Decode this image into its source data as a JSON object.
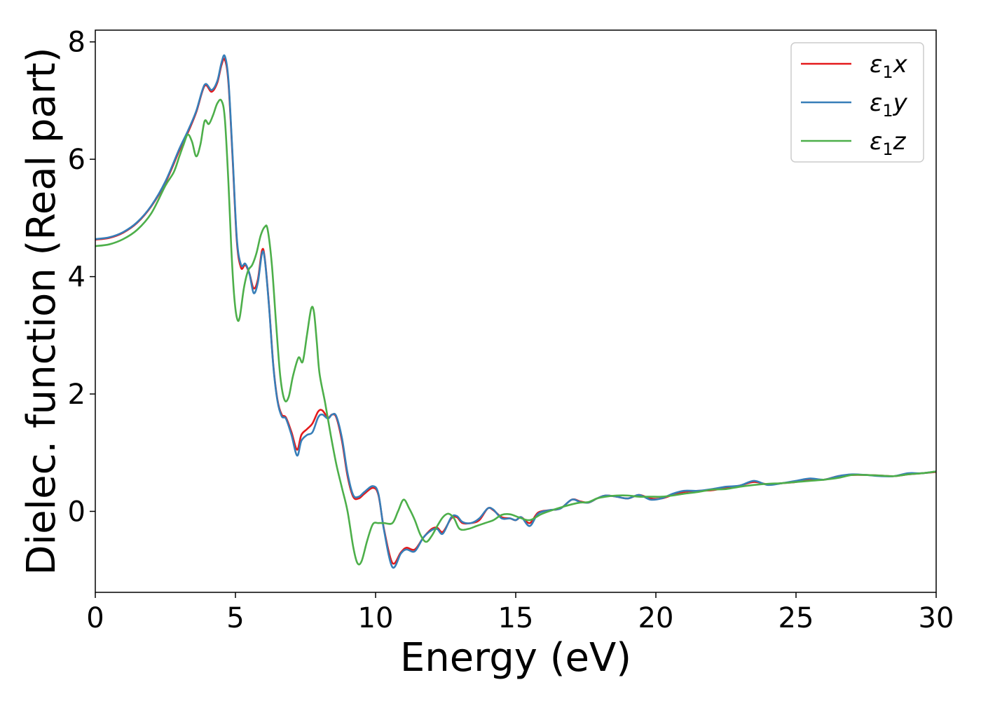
{
  "chart_data": {
    "type": "line",
    "title": "",
    "xlabel": "Energy (eV)",
    "ylabel": "Dielec. function (Real part)",
    "xlim": [
      0,
      30
    ],
    "ylim": [
      -1.38,
      8.2
    ],
    "xticks": [
      0,
      5,
      10,
      15,
      20,
      25,
      30
    ],
    "yticks": [
      0,
      2,
      4,
      6,
      8
    ],
    "grid": false,
    "legend_position": "top-right",
    "series": [
      {
        "name": "ε₁x",
        "label_base": "ε",
        "label_sub": "1",
        "label_var": "x",
        "color": "#e41a1c",
        "x": [
          0,
          0.5,
          1,
          1.5,
          2,
          2.5,
          3,
          3.3,
          3.6,
          3.9,
          4.15,
          4.35,
          4.5,
          4.62,
          4.75,
          4.9,
          5.05,
          5.2,
          5.35,
          5.5,
          5.65,
          5.8,
          5.95,
          6.05,
          6.2,
          6.35,
          6.5,
          6.65,
          6.8,
          7.0,
          7.2,
          7.35,
          7.55,
          7.75,
          7.95,
          8.1,
          8.3,
          8.45,
          8.6,
          8.8,
          9.0,
          9.2,
          9.4,
          9.6,
          9.9,
          10.1,
          10.3,
          10.6,
          10.9,
          11.1,
          11.4,
          11.7,
          12.0,
          12.2,
          12.4,
          12.7,
          12.9,
          13.1,
          13.4,
          13.7,
          14.0,
          14.2,
          14.5,
          14.8,
          15.0,
          15.2,
          15.5,
          15.8,
          16.2,
          16.6,
          17.0,
          17.3,
          17.6,
          17.9,
          18.2,
          18.6,
          19.0,
          19.4,
          19.8,
          20.2,
          20.6,
          21.0,
          21.5,
          22.0,
          22.5,
          23.0,
          23.5,
          24.0,
          24.5,
          25.0,
          25.5,
          26.0,
          26.5,
          27.0,
          27.5,
          28.0,
          28.5,
          29.0,
          29.5,
          30.0
        ],
        "y": [
          4.63,
          4.66,
          4.75,
          4.92,
          5.2,
          5.6,
          6.15,
          6.45,
          6.8,
          7.25,
          7.15,
          7.3,
          7.6,
          7.7,
          7.3,
          6.0,
          4.6,
          4.15,
          4.2,
          4.05,
          3.8,
          3.95,
          4.45,
          4.3,
          3.5,
          2.5,
          1.9,
          1.65,
          1.6,
          1.35,
          1.05,
          1.3,
          1.4,
          1.5,
          1.7,
          1.72,
          1.6,
          1.65,
          1.6,
          1.2,
          0.6,
          0.25,
          0.22,
          0.3,
          0.4,
          0.28,
          -0.3,
          -0.88,
          -0.7,
          -0.62,
          -0.65,
          -0.45,
          -0.3,
          -0.28,
          -0.35,
          -0.12,
          -0.1,
          -0.2,
          -0.2,
          -0.15,
          0.05,
          0.02,
          -0.1,
          -0.12,
          -0.15,
          -0.1,
          -0.2,
          -0.02,
          0.02,
          0.05,
          0.2,
          0.17,
          0.15,
          0.22,
          0.27,
          0.25,
          0.22,
          0.28,
          0.22,
          0.22,
          0.28,
          0.33,
          0.35,
          0.36,
          0.4,
          0.44,
          0.5,
          0.46,
          0.48,
          0.5,
          0.55,
          0.54,
          0.6,
          0.62,
          0.62,
          0.61,
          0.6,
          0.63,
          0.65,
          0.67
        ]
      },
      {
        "name": "ε₁y",
        "label_base": "ε",
        "label_sub": "1",
        "label_var": "y",
        "color": "#377eb8",
        "x": [
          0,
          0.5,
          1,
          1.5,
          2,
          2.5,
          3,
          3.3,
          3.6,
          3.9,
          4.15,
          4.35,
          4.5,
          4.62,
          4.75,
          4.9,
          5.05,
          5.2,
          5.35,
          5.5,
          5.65,
          5.8,
          5.95,
          6.05,
          6.2,
          6.35,
          6.5,
          6.65,
          6.8,
          7.0,
          7.2,
          7.35,
          7.55,
          7.75,
          7.95,
          8.1,
          8.3,
          8.45,
          8.6,
          8.8,
          9.0,
          9.2,
          9.4,
          9.6,
          9.9,
          10.1,
          10.3,
          10.6,
          10.9,
          11.1,
          11.4,
          11.7,
          12.0,
          12.2,
          12.4,
          12.7,
          12.9,
          13.1,
          13.4,
          13.7,
          14.0,
          14.2,
          14.5,
          14.8,
          15.0,
          15.2,
          15.5,
          15.8,
          16.2,
          16.6,
          17.0,
          17.3,
          17.6,
          17.9,
          18.2,
          18.6,
          19.0,
          19.4,
          19.8,
          20.2,
          20.6,
          21.0,
          21.5,
          22.0,
          22.5,
          23.0,
          23.5,
          24.0,
          24.5,
          25.0,
          25.5,
          26.0,
          26.5,
          27.0,
          27.5,
          28.0,
          28.5,
          29.0,
          29.5,
          30.0
        ],
        "y": [
          4.64,
          4.67,
          4.76,
          4.93,
          5.21,
          5.62,
          6.18,
          6.48,
          6.82,
          7.27,
          7.18,
          7.33,
          7.64,
          7.76,
          7.35,
          6.05,
          4.65,
          4.2,
          4.22,
          4.05,
          3.72,
          3.9,
          4.4,
          4.28,
          3.48,
          2.48,
          1.88,
          1.62,
          1.58,
          1.3,
          0.95,
          1.2,
          1.3,
          1.35,
          1.6,
          1.65,
          1.58,
          1.65,
          1.62,
          1.25,
          0.65,
          0.28,
          0.25,
          0.33,
          0.43,
          0.3,
          -0.32,
          -0.95,
          -0.72,
          -0.65,
          -0.68,
          -0.45,
          -0.32,
          -0.3,
          -0.38,
          -0.1,
          -0.08,
          -0.18,
          -0.2,
          -0.12,
          0.05,
          0.03,
          -0.12,
          -0.12,
          -0.15,
          -0.1,
          -0.25,
          -0.04,
          0.02,
          0.05,
          0.2,
          0.16,
          0.15,
          0.22,
          0.27,
          0.25,
          0.22,
          0.28,
          0.2,
          0.22,
          0.3,
          0.35,
          0.35,
          0.38,
          0.42,
          0.44,
          0.52,
          0.45,
          0.48,
          0.52,
          0.56,
          0.54,
          0.6,
          0.63,
          0.62,
          0.6,
          0.6,
          0.65,
          0.65,
          0.68
        ]
      },
      {
        "name": "ε₁z",
        "label_base": "ε",
        "label_sub": "1",
        "label_var": "z",
        "color": "#4daf4a",
        "x": [
          0,
          0.5,
          1,
          1.5,
          2,
          2.5,
          2.8,
          3.0,
          3.15,
          3.3,
          3.45,
          3.6,
          3.75,
          3.9,
          4.05,
          4.2,
          4.35,
          4.5,
          4.62,
          4.75,
          4.85,
          4.95,
          5.05,
          5.15,
          5.3,
          5.45,
          5.6,
          5.75,
          5.9,
          6.05,
          6.15,
          6.3,
          6.45,
          6.6,
          6.75,
          6.9,
          7.05,
          7.25,
          7.4,
          7.55,
          7.7,
          7.8,
          7.9,
          8.0,
          8.2,
          8.4,
          8.6,
          8.8,
          9.0,
          9.2,
          9.35,
          9.5,
          9.7,
          9.9,
          10.1,
          10.3,
          10.6,
          10.8,
          11.0,
          11.2,
          11.4,
          11.6,
          11.8,
          12.0,
          12.2,
          12.4,
          12.6,
          12.8,
          13.0,
          13.3,
          13.6,
          13.9,
          14.2,
          14.5,
          14.8,
          15.1,
          15.5,
          15.9,
          16.3,
          16.7,
          17.0,
          17.3,
          17.6,
          17.9,
          18.2,
          18.6,
          19.0,
          19.4,
          19.8,
          20.2,
          20.6,
          21.0,
          21.5,
          22.0,
          22.5,
          23.0,
          23.5,
          24.0,
          24.5,
          25.0,
          25.5,
          26.0,
          26.5,
          27.0,
          27.5,
          28.0,
          28.5,
          29.0,
          29.5,
          30.0
        ],
        "y": [
          4.52,
          4.55,
          4.64,
          4.8,
          5.08,
          5.55,
          5.78,
          6.05,
          6.25,
          6.42,
          6.3,
          6.05,
          6.25,
          6.65,
          6.6,
          6.75,
          6.95,
          7.0,
          6.7,
          5.6,
          4.5,
          3.7,
          3.3,
          3.3,
          3.8,
          4.1,
          4.2,
          4.4,
          4.7,
          4.85,
          4.8,
          4.2,
          3.2,
          2.3,
          1.9,
          1.95,
          2.3,
          2.62,
          2.55,
          3.0,
          3.45,
          3.4,
          2.9,
          2.35,
          1.85,
          1.3,
          0.8,
          0.4,
          0.0,
          -0.6,
          -0.88,
          -0.85,
          -0.5,
          -0.22,
          -0.2,
          -0.2,
          -0.2,
          0.0,
          0.2,
          0.05,
          -0.15,
          -0.4,
          -0.52,
          -0.42,
          -0.25,
          -0.1,
          -0.04,
          -0.12,
          -0.3,
          -0.3,
          -0.25,
          -0.2,
          -0.15,
          -0.06,
          -0.05,
          -0.1,
          -0.15,
          -0.05,
          0.02,
          0.08,
          0.12,
          0.15,
          0.16,
          0.22,
          0.25,
          0.27,
          0.27,
          0.25,
          0.25,
          0.25,
          0.27,
          0.3,
          0.33,
          0.37,
          0.38,
          0.42,
          0.45,
          0.47,
          0.48,
          0.5,
          0.52,
          0.54,
          0.57,
          0.62,
          0.62,
          0.61,
          0.6,
          0.63,
          0.65,
          0.68
        ]
      }
    ]
  }
}
